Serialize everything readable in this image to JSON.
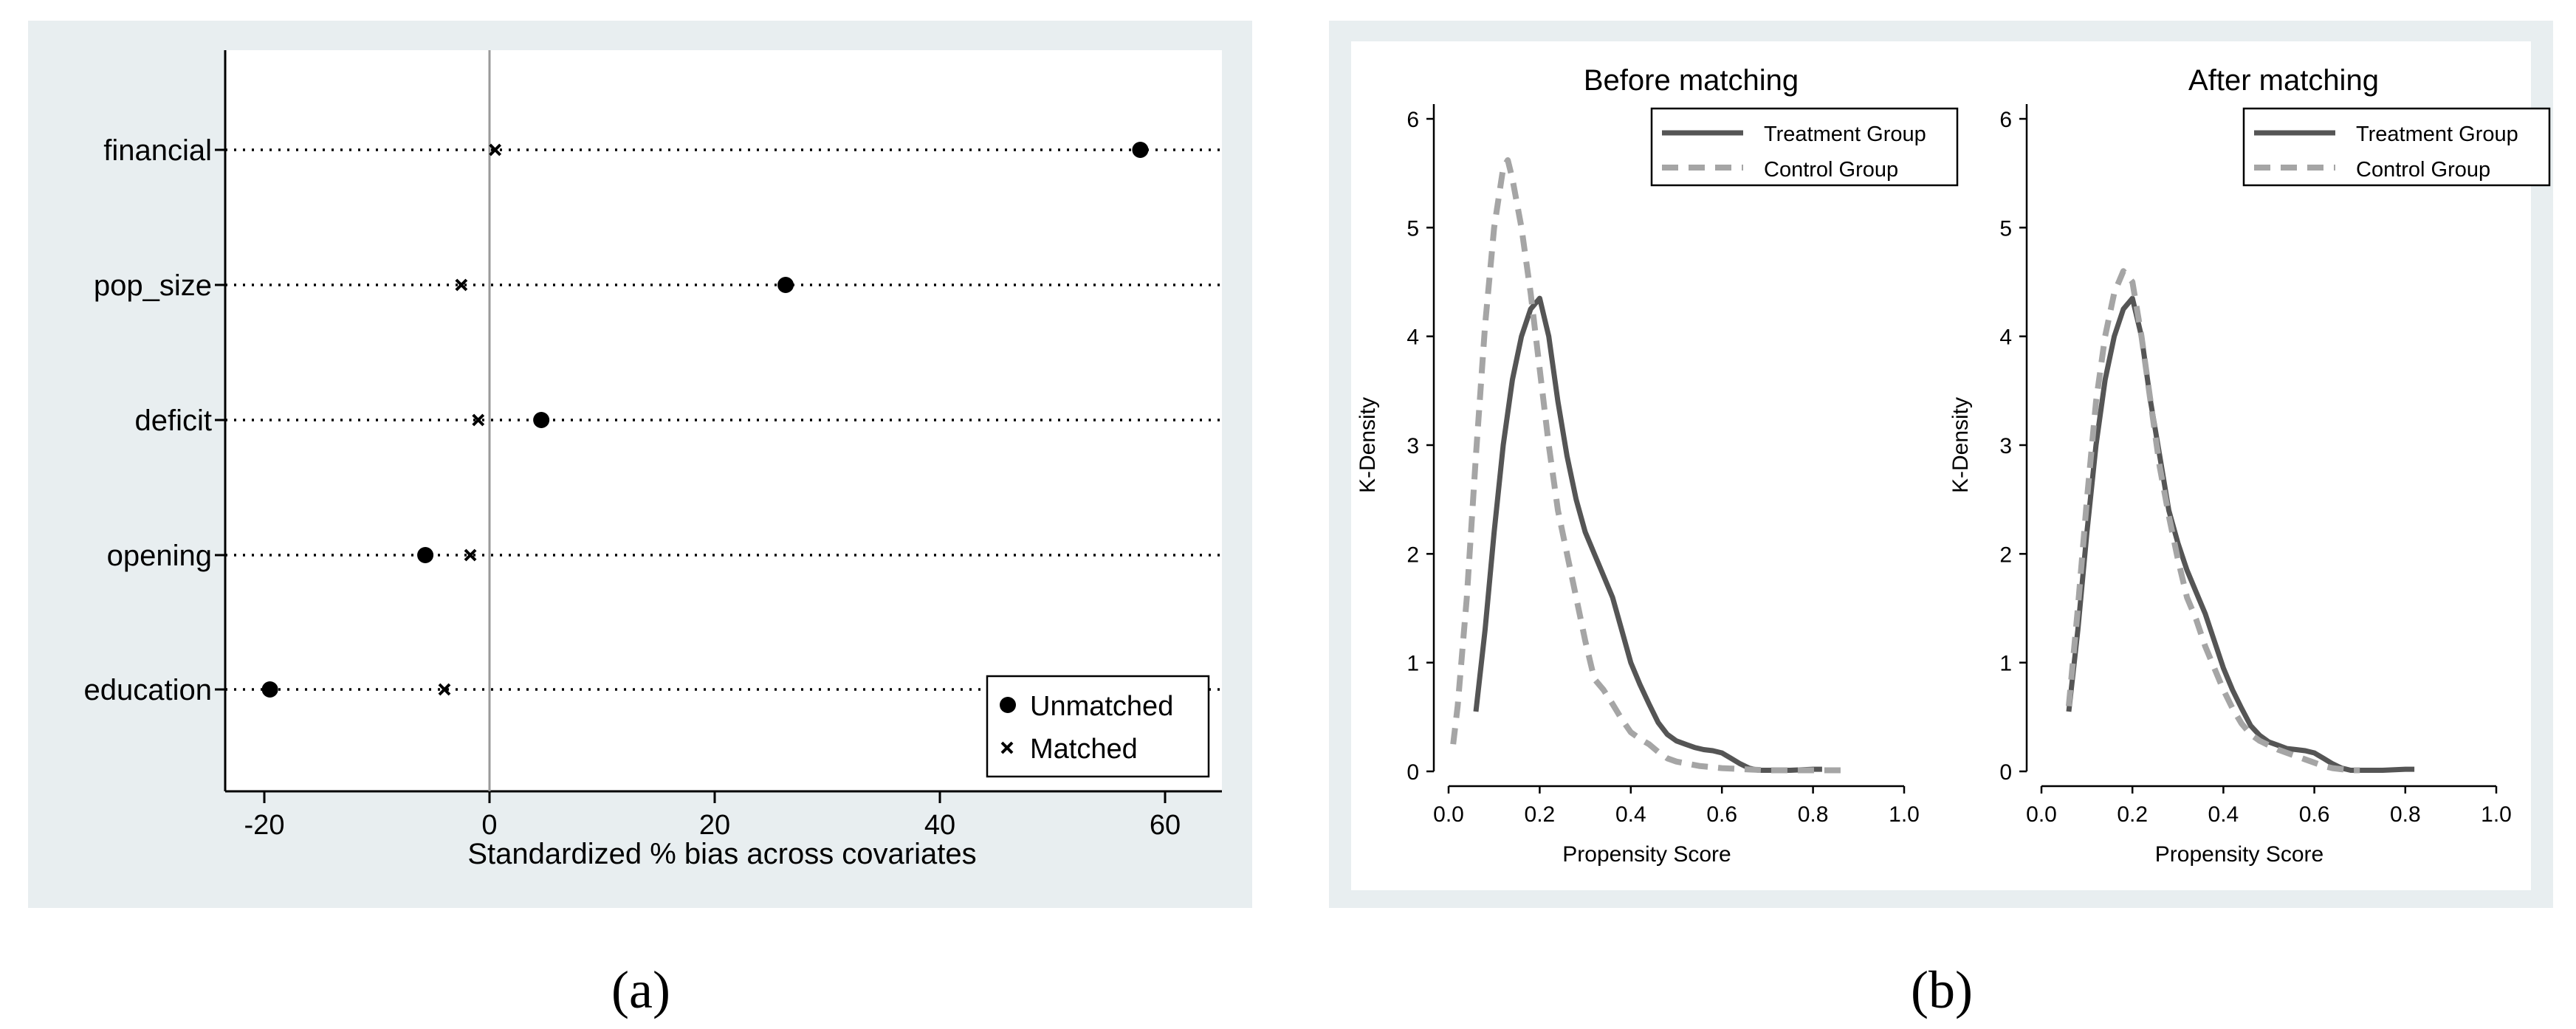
{
  "chart_data": [
    {
      "type": "scatter",
      "panel_label": "(a)",
      "xlabel": "Standardized % bias across covariates",
      "xlim": [
        -22,
        63
      ],
      "xticks": [
        "-20",
        "0",
        "20",
        "40",
        "60"
      ],
      "xtick_values": [
        -20,
        0,
        20,
        40,
        60
      ],
      "categories": [
        "financial",
        "pop_size",
        "deficit",
        "opening",
        "education"
      ],
      "series": [
        {
          "name": "Unmatched",
          "marker": "dot",
          "values": [
            57.8,
            26.3,
            4.6,
            -5.7,
            -19.5
          ]
        },
        {
          "name": "Matched",
          "marker": "x",
          "values": [
            0.5,
            -2.5,
            -1.0,
            -1.7,
            -4.0
          ]
        }
      ],
      "legend": [
        "Unmatched",
        "Matched"
      ],
      "legend_position": "bottom-right",
      "reference_line": 0
    },
    {
      "type": "line",
      "panel_label": "(b)",
      "title": "Before matching",
      "xlabel": "Propensity Score",
      "ylabel": "K-Density",
      "xlim": [
        0,
        1
      ],
      "ylim": [
        0,
        6
      ],
      "xticks": [
        "0.0",
        "0.2",
        "0.4",
        "0.6",
        "0.8",
        "1.0"
      ],
      "yticks": [
        "0",
        "1",
        "2",
        "3",
        "4",
        "5",
        "6"
      ],
      "legend_position": "top-right",
      "series": [
        {
          "name": "Treatment Group",
          "style": "solid",
          "x": [
            0.06,
            0.08,
            0.1,
            0.12,
            0.14,
            0.16,
            0.18,
            0.2,
            0.22,
            0.24,
            0.26,
            0.28,
            0.3,
            0.32,
            0.34,
            0.36,
            0.38,
            0.4,
            0.42,
            0.44,
            0.46,
            0.48,
            0.5,
            0.52,
            0.54,
            0.56,
            0.58,
            0.6,
            0.62,
            0.64,
            0.66,
            0.68,
            0.7,
            0.75,
            0.8,
            0.82
          ],
          "y": [
            0.55,
            1.3,
            2.2,
            3.0,
            3.6,
            4.0,
            4.25,
            4.35,
            4.0,
            3.4,
            2.9,
            2.5,
            2.2,
            2.0,
            1.8,
            1.6,
            1.3,
            1.0,
            0.8,
            0.62,
            0.45,
            0.34,
            0.28,
            0.25,
            0.22,
            0.2,
            0.19,
            0.17,
            0.12,
            0.07,
            0.03,
            0.01,
            0.01,
            0.01,
            0.02,
            0.02
          ]
        },
        {
          "name": "Control Group",
          "style": "dashed",
          "x": [
            0.01,
            0.02,
            0.04,
            0.06,
            0.08,
            0.1,
            0.12,
            0.13,
            0.14,
            0.16,
            0.18,
            0.2,
            0.22,
            0.24,
            0.26,
            0.28,
            0.3,
            0.32,
            0.34,
            0.36,
            0.38,
            0.4,
            0.42,
            0.44,
            0.46,
            0.48,
            0.5,
            0.55,
            0.6,
            0.65,
            0.7,
            0.8,
            0.87
          ],
          "y": [
            0.25,
            0.6,
            1.6,
            2.9,
            4.1,
            5.0,
            5.55,
            5.62,
            5.45,
            5.0,
            4.4,
            3.7,
            3.0,
            2.4,
            2.0,
            1.6,
            1.2,
            0.85,
            0.75,
            0.62,
            0.48,
            0.36,
            0.3,
            0.25,
            0.18,
            0.12,
            0.09,
            0.05,
            0.03,
            0.02,
            0.01,
            0.01,
            0.01
          ]
        }
      ]
    },
    {
      "type": "line",
      "panel_label": "(b)",
      "title": "After matching",
      "xlabel": "Propensity Score",
      "ylabel": "K-Density",
      "xlim": [
        0,
        1
      ],
      "ylim": [
        0,
        6
      ],
      "xticks": [
        "0.0",
        "0.2",
        "0.4",
        "0.6",
        "0.8",
        "1.0"
      ],
      "yticks": [
        "0",
        "1",
        "2",
        "3",
        "4",
        "5",
        "6"
      ],
      "legend_position": "top-right",
      "series": [
        {
          "name": "Treatment Group",
          "style": "solid",
          "x": [
            0.06,
            0.08,
            0.1,
            0.12,
            0.14,
            0.16,
            0.18,
            0.2,
            0.22,
            0.24,
            0.26,
            0.28,
            0.3,
            0.32,
            0.34,
            0.36,
            0.38,
            0.4,
            0.42,
            0.44,
            0.46,
            0.48,
            0.5,
            0.52,
            0.54,
            0.56,
            0.58,
            0.6,
            0.62,
            0.64,
            0.66,
            0.68,
            0.7,
            0.75,
            0.8,
            0.82
          ],
          "y": [
            0.55,
            1.3,
            2.2,
            3.0,
            3.6,
            4.0,
            4.25,
            4.35,
            4.0,
            3.4,
            2.9,
            2.4,
            2.1,
            1.85,
            1.65,
            1.45,
            1.2,
            0.95,
            0.75,
            0.58,
            0.42,
            0.33,
            0.27,
            0.24,
            0.21,
            0.2,
            0.19,
            0.17,
            0.12,
            0.07,
            0.03,
            0.01,
            0.01,
            0.01,
            0.02,
            0.02
          ]
        },
        {
          "name": "Control Group",
          "style": "dashed",
          "x": [
            0.06,
            0.08,
            0.1,
            0.12,
            0.14,
            0.16,
            0.18,
            0.2,
            0.22,
            0.24,
            0.26,
            0.28,
            0.3,
            0.32,
            0.34,
            0.36,
            0.38,
            0.4,
            0.42,
            0.44,
            0.46,
            0.48,
            0.5,
            0.52,
            0.54,
            0.56,
            0.58,
            0.6,
            0.62,
            0.64,
            0.66,
            0.68,
            0.7
          ],
          "y": [
            0.6,
            1.5,
            2.5,
            3.4,
            4.0,
            4.4,
            4.6,
            4.5,
            4.0,
            3.4,
            2.8,
            2.35,
            1.95,
            1.6,
            1.4,
            1.15,
            0.95,
            0.75,
            0.58,
            0.44,
            0.34,
            0.28,
            0.24,
            0.2,
            0.17,
            0.14,
            0.11,
            0.08,
            0.05,
            0.03,
            0.02,
            0.01,
            0.01
          ]
        }
      ]
    }
  ]
}
